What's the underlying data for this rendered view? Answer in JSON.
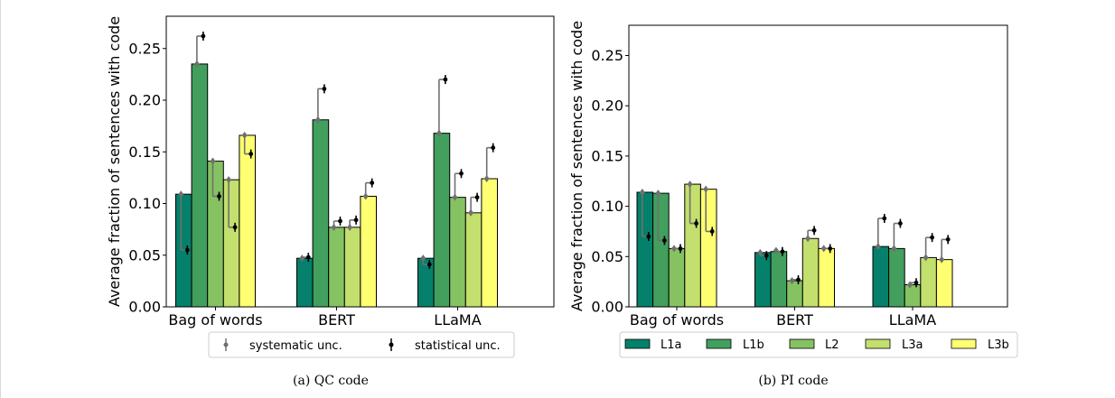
{
  "chart_data": [
    {
      "type": "bar",
      "title": "",
      "xlabel": "",
      "ylabel": "Average fraction of sentences with code",
      "ylim": [
        0,
        0.28
      ],
      "yticks": [
        "0.00",
        "0.05",
        "0.10",
        "0.15",
        "0.20",
        "0.25"
      ],
      "categories": [
        "Bag of words",
        "BERT",
        "LLaMA"
      ],
      "series": [
        {
          "name": "L1a",
          "values": [
            0.109,
            0.047,
            0.047
          ],
          "syst": [
            0.109,
            0.047,
            0.047
          ],
          "stat": [
            0.055,
            0.048,
            0.041
          ]
        },
        {
          "name": "L1b",
          "values": [
            0.235,
            0.181,
            0.168
          ],
          "syst": [
            0.235,
            0.181,
            0.168
          ],
          "stat": [
            0.262,
            0.211,
            0.22
          ]
        },
        {
          "name": "L2",
          "values": [
            0.141,
            0.077,
            0.106
          ],
          "syst": [
            0.141,
            0.077,
            0.106
          ],
          "stat": [
            0.107,
            0.083,
            0.129
          ]
        },
        {
          "name": "L3a",
          "values": [
            0.123,
            0.077,
            0.091
          ],
          "syst": [
            0.123,
            0.077,
            0.091
          ],
          "stat": [
            0.077,
            0.084,
            0.106
          ]
        },
        {
          "name": "L3b",
          "values": [
            0.166,
            0.107,
            0.124
          ],
          "syst": [
            0.166,
            0.107,
            0.124
          ],
          "stat": [
            0.148,
            0.12,
            0.154
          ]
        }
      ],
      "legend": {
        "position": "bottom",
        "entries": [
          "systematic unc.",
          "statistical unc."
        ]
      },
      "caption": "(a) QC code"
    },
    {
      "type": "bar",
      "title": "",
      "xlabel": "",
      "ylabel": "Average fraction of sentences with code",
      "ylim": [
        0,
        0.28
      ],
      "yticks": [
        "0.00",
        "0.05",
        "0.10",
        "0.15",
        "0.20",
        "0.25"
      ],
      "categories": [
        "Bag of words",
        "BERT",
        "LLaMA"
      ],
      "series": [
        {
          "name": "L1a",
          "values": [
            0.114,
            0.054,
            0.06
          ],
          "syst": [
            0.114,
            0.054,
            0.06
          ],
          "stat": [
            0.07,
            0.051,
            0.088
          ]
        },
        {
          "name": "L1b",
          "values": [
            0.113,
            0.055,
            0.058
          ],
          "syst": [
            0.113,
            0.056,
            0.058
          ],
          "stat": [
            0.066,
            0.055,
            0.083
          ]
        },
        {
          "name": "L2",
          "values": [
            0.058,
            0.026,
            0.022
          ],
          "syst": [
            0.058,
            0.026,
            0.022
          ],
          "stat": [
            0.058,
            0.027,
            0.024
          ]
        },
        {
          "name": "L3a",
          "values": [
            0.122,
            0.068,
            0.049
          ],
          "syst": [
            0.122,
            0.068,
            0.049
          ],
          "stat": [
            0.083,
            0.076,
            0.069
          ]
        },
        {
          "name": "L3b",
          "values": [
            0.117,
            0.058,
            0.047
          ],
          "syst": [
            0.117,
            0.058,
            0.047
          ],
          "stat": [
            0.075,
            0.058,
            0.067
          ]
        }
      ],
      "legend": {
        "position": "bottom",
        "entries": [
          "L1a",
          "L1b",
          "L2",
          "L3a",
          "L3b"
        ]
      },
      "caption": "(b) PI code"
    }
  ],
  "colors": {
    "L1a": "#05806a",
    "L1b": "#429f5e",
    "L2": "#84c262",
    "L3a": "#c3df6d",
    "L3b": "#ffff72",
    "systematic": "#707070",
    "statistical": "#000000"
  }
}
